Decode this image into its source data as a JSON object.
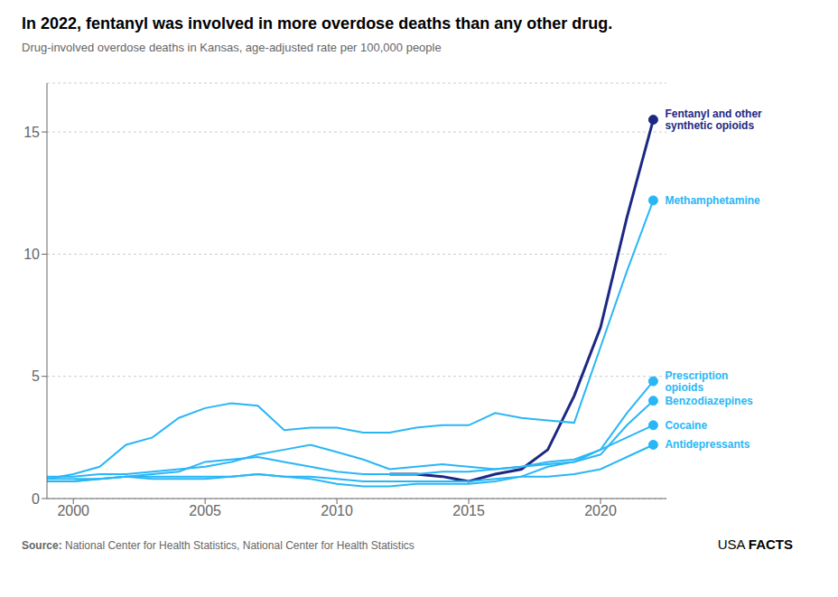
{
  "chart_data": {
    "type": "line",
    "title": "In 2022, fentanyl was involved in more overdose deaths than any other drug.",
    "subtitle": "Drug-involved overdose deaths in Kansas, age-adjusted rate per 100,000 people",
    "source_label": "Source:",
    "source": "National Center for Health Statistics, National Center for Health Statistics",
    "branding": [
      "USA",
      "FACTS"
    ],
    "x": [
      1999,
      2000,
      2001,
      2002,
      2003,
      2004,
      2005,
      2006,
      2007,
      2008,
      2009,
      2010,
      2011,
      2012,
      2013,
      2014,
      2015,
      2016,
      2017,
      2018,
      2019,
      2020,
      2021,
      2022
    ],
    "series": [
      {
        "name": "Fentanyl and other\nsynthetic opioids",
        "color": "#1c2882",
        "values": [
          null,
          null,
          null,
          null,
          null,
          null,
          null,
          null,
          null,
          null,
          null,
          null,
          null,
          1.0,
          1.0,
          0.9,
          0.7,
          1.0,
          1.2,
          2.0,
          4.2,
          7.0,
          11.5,
          15.5
        ]
      },
      {
        "name": "Methamphetamine",
        "color": "#29b6f6",
        "values": [
          0.8,
          1.0,
          1.3,
          2.2,
          2.5,
          3.3,
          3.7,
          3.9,
          3.8,
          2.8,
          2.9,
          2.9,
          2.7,
          2.7,
          2.9,
          3.0,
          3.0,
          3.5,
          3.3,
          3.2,
          3.1,
          6.2,
          9.3,
          12.2
        ]
      },
      {
        "name": "Prescription\nopioids",
        "color": "#29b6f6",
        "values": [
          0.9,
          0.9,
          1.0,
          1.0,
          1.1,
          1.2,
          1.3,
          1.5,
          1.8,
          2.0,
          2.2,
          1.9,
          1.6,
          1.2,
          1.3,
          1.4,
          1.3,
          1.2,
          1.3,
          1.5,
          1.6,
          2.0,
          3.5,
          4.8
        ]
      },
      {
        "name": "Benzodiazepines",
        "color": "#29b6f6",
        "values": [
          0.7,
          0.7,
          0.8,
          0.9,
          1.0,
          1.1,
          1.5,
          1.6,
          1.7,
          1.5,
          1.3,
          1.1,
          1.0,
          1.0,
          1.0,
          1.1,
          1.1,
          1.2,
          1.3,
          1.4,
          1.5,
          1.8,
          3.0,
          4.0
        ]
      },
      {
        "name": "Cocaine",
        "color": "#29b6f6",
        "values": [
          0.8,
          0.8,
          0.8,
          0.9,
          0.8,
          0.8,
          0.8,
          0.9,
          1.0,
          0.9,
          0.8,
          0.6,
          0.5,
          0.5,
          0.6,
          0.6,
          0.6,
          0.7,
          0.9,
          1.3,
          1.5,
          2.0,
          2.5,
          3.0
        ]
      },
      {
        "name": "Antidepressants",
        "color": "#29b6f6",
        "values": [
          0.7,
          0.7,
          0.8,
          0.9,
          0.9,
          0.9,
          0.9,
          0.9,
          1.0,
          0.9,
          0.9,
          0.8,
          0.7,
          0.7,
          0.7,
          0.7,
          0.7,
          0.8,
          0.9,
          0.9,
          1.0,
          1.2,
          1.7,
          2.2
        ]
      }
    ],
    "xlim": [
      1999,
      2022.5
    ],
    "ylim": [
      0,
      17
    ],
    "xticks": [
      2000,
      2005,
      2010,
      2015,
      2020
    ],
    "yticks": [
      0,
      5,
      10,
      15
    ],
    "grid": true
  }
}
